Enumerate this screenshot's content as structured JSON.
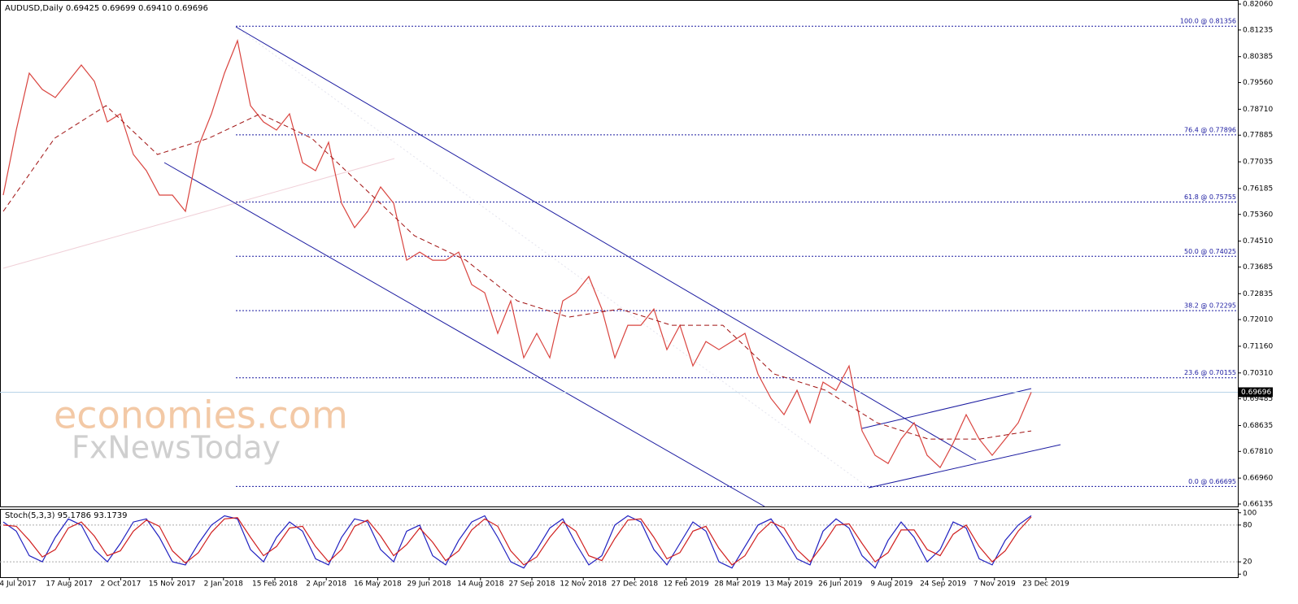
{
  "chart_data": [
    {
      "type": "line",
      "title": "AUDUSD,Daily  0.69425 0.69699 0.69410 0.69696",
      "watermark": [
        "economies.com",
        "FxNewsToday"
      ],
      "ylim": [
        0.8219,
        0.66057
      ],
      "yticks": [
        {
          "value": 0.8206,
          "label": "0.82060"
        },
        0.81235,
        0.80385,
        {
          "value": 0.7956,
          "label": "0.79560"
        },
        {
          "value": 0.7871,
          "label": "0.78710"
        },
        0.77885,
        0.77035,
        0.76185,
        {
          "value": 0.7536,
          "label": "0.75360"
        },
        {
          "value": 0.7451,
          "label": "0.74510"
        },
        0.73685,
        0.72835,
        {
          "value": 0.7201,
          "label": "0.72010"
        },
        {
          "value": 0.7116,
          "label": "0.71160"
        },
        {
          "value": 0.7031,
          "label": "0.70310"
        },
        0.69485,
        0.68635,
        {
          "value": 0.6781,
          "label": "0.67810"
        },
        {
          "value": 0.6696,
          "label": "0.66960"
        },
        0.66135
      ],
      "x_labels": [
        "4 Jul 2017",
        "17 Aug 2017",
        "2 Oct 2017",
        "15 Nov 2017",
        "2 Jan 2018",
        "15 Feb 2018",
        "2 Apr 2018",
        "16 May 2018",
        "29 Jun 2018",
        "14 Aug 2018",
        "27 Sep 2018",
        "12 Nov 2018",
        "27 Dec 2018",
        "12 Feb 2019",
        "28 Mar 2019",
        "13 May 2019",
        "26 Jun 2019",
        "9 Aug 2019",
        "24 Sep 2019",
        "7 Nov 2019",
        "23 Dec 2019"
      ],
      "series": [
        {
          "name": "AUDUSD",
          "color": "#d9443f",
          "values": [
            0.75974,
            0.78046,
            0.79859,
            0.79341,
            0.79082,
            0.796,
            0.80118,
            0.796,
            0.78305,
            0.78564,
            0.77269,
            0.76751,
            0.75974,
            0.75974,
            0.75456,
            0.77528,
            0.78564,
            0.79859,
            0.80895,
            0.78823,
            0.78305,
            0.78046,
            0.78564,
            0.7701,
            0.76751,
            0.77658,
            0.75715,
            0.74938,
            0.75456,
            0.76233,
            0.75715,
            0.73902,
            0.74161,
            0.73902,
            0.73902,
            0.74161,
            0.73125,
            0.72866,
            0.71571,
            0.72607,
            0.70794,
            0.71571,
            0.70794,
            0.72607,
            0.72866,
            0.73384,
            0.72348,
            0.70794,
            0.7183,
            0.7183,
            0.72348,
            0.71053,
            0.7183,
            0.70535,
            0.71312,
            0.71053,
            0.71312,
            0.71571,
            0.70276,
            0.69499,
            0.68981,
            0.69758,
            0.68722,
            0.70017,
            0.69758,
            0.70535,
            0.68463,
            0.67686,
            0.67427,
            0.68204,
            0.68722,
            0.67686,
            0.67298,
            0.68075,
            0.68981,
            0.68204,
            0.67686,
            0.68204,
            0.68722,
            0.69696
          ]
        },
        {
          "name": "MA",
          "color": "#a01010",
          "values": [
            0.75456,
            0.77787,
            0.78823,
            0.77269,
            0.77787,
            0.78564,
            0.77787,
            0.76233,
            0.74679,
            0.73902,
            0.72607,
            0.72089,
            0.72348,
            0.7183,
            0.7183,
            0.70276,
            0.69758,
            0.68722,
            0.68204,
            0.68204,
            0.68463
          ]
        }
      ],
      "current_price": 0.69696,
      "levels": [
        {
          "value": 0.81356,
          "label": "100.0 @ 0.81356"
        },
        {
          "value": 0.77896,
          "label": "76.4 @ 0.77896"
        },
        {
          "value": 0.75755,
          "label": "61.8 @ 0.75755"
        },
        {
          "value": 0.74025,
          "label": "50.0 @ 0.74025"
        },
        {
          "value": 0.72295,
          "label": "38.2 @ 0.72295"
        },
        {
          "value": 0.70155,
          "label": "23.6 @ 0.70155"
        },
        {
          "value": 0.66695,
          "label": "0.0 @ 0.66695"
        }
      ]
    },
    {
      "type": "line",
      "title": "Stoch(5,3,3) 95.1786 93.1739",
      "ylim": [
        -5,
        105
      ],
      "yticks": [
        100,
        80,
        20,
        0
      ],
      "levels": [
        80,
        20
      ],
      "series": [
        {
          "name": "%K",
          "color": "#2020c0",
          "values": [
            85,
            70,
            30,
            20,
            60,
            90,
            80,
            40,
            20,
            50,
            85,
            90,
            60,
            20,
            15,
            50,
            80,
            95,
            90,
            40,
            20,
            60,
            85,
            70,
            25,
            15,
            60,
            90,
            85,
            40,
            20,
            70,
            80,
            30,
            15,
            55,
            85,
            95,
            60,
            20,
            10,
            40,
            75,
            90,
            50,
            15,
            30,
            80,
            95,
            85,
            40,
            15,
            50,
            85,
            70,
            20,
            10,
            45,
            80,
            90,
            60,
            25,
            15,
            70,
            90,
            75,
            30,
            10,
            55,
            85,
            60,
            20,
            40,
            85,
            75,
            25,
            15,
            55,
            80,
            95.1786
          ]
        },
        {
          "name": "%D",
          "color": "#d02020",
          "values": [
            80,
            78,
            55,
            28,
            40,
            75,
            85,
            62,
            30,
            38,
            70,
            88,
            78,
            38,
            18,
            35,
            68,
            90,
            92,
            60,
            30,
            45,
            75,
            78,
            45,
            20,
            40,
            78,
            88,
            62,
            30,
            48,
            75,
            52,
            22,
            38,
            72,
            90,
            78,
            38,
            15,
            28,
            60,
            85,
            70,
            30,
            22,
            58,
            88,
            90,
            60,
            25,
            35,
            70,
            78,
            42,
            15,
            30,
            65,
            85,
            75,
            40,
            20,
            48,
            80,
            82,
            50,
            20,
            35,
            72,
            72,
            40,
            30,
            65,
            80,
            45,
            20,
            38,
            70,
            93.1739
          ]
        }
      ]
    }
  ]
}
